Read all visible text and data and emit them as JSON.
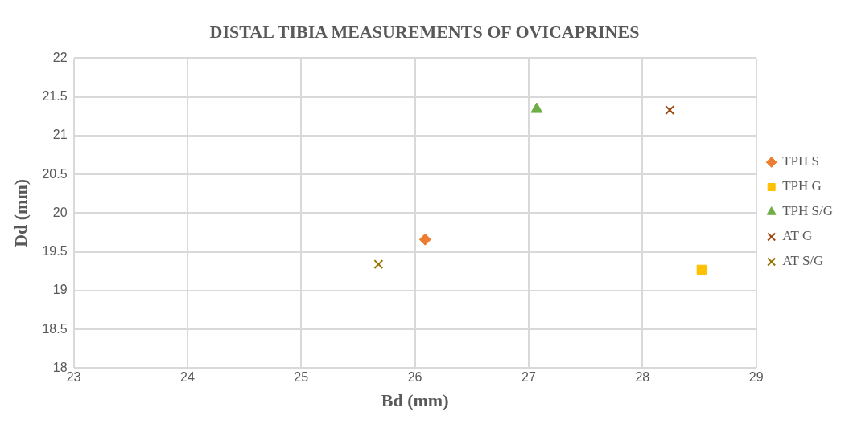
{
  "chart_data": {
    "type": "scatter",
    "title": "DISTAL TIBIA MEASUREMENTS OF OVICAPRINES",
    "xlabel": "Bd (mm)",
    "ylabel": "Dd (mm)",
    "xlim": [
      23,
      29
    ],
    "xticks": [
      23,
      24,
      25,
      26,
      27,
      28,
      29
    ],
    "ylim": [
      18,
      22
    ],
    "yticks": [
      18,
      18.5,
      19,
      19.5,
      20,
      20.5,
      21,
      21.5,
      22
    ],
    "grid": true,
    "legend": "right",
    "series": [
      {
        "name": "TPH S",
        "color": "#ed7d31",
        "marker": "diamond",
        "x": [
          26.09
        ],
        "values": [
          19.66
        ]
      },
      {
        "name": "TPH G",
        "color": "#ffc000",
        "marker": "square",
        "x": [
          28.52
        ],
        "values": [
          19.27
        ]
      },
      {
        "name": "TPH S/G",
        "color": "#70ad47",
        "marker": "triangle",
        "x": [
          27.07
        ],
        "values": [
          21.34
        ]
      },
      {
        "name": "AT G",
        "color": "#9e480e",
        "marker": "cross",
        "x": [
          28.24
        ],
        "values": [
          21.33
        ]
      },
      {
        "name": "AT S/G",
        "color": "#997300",
        "marker": "cross",
        "x": [
          25.68
        ],
        "values": [
          19.34
        ]
      }
    ]
  }
}
